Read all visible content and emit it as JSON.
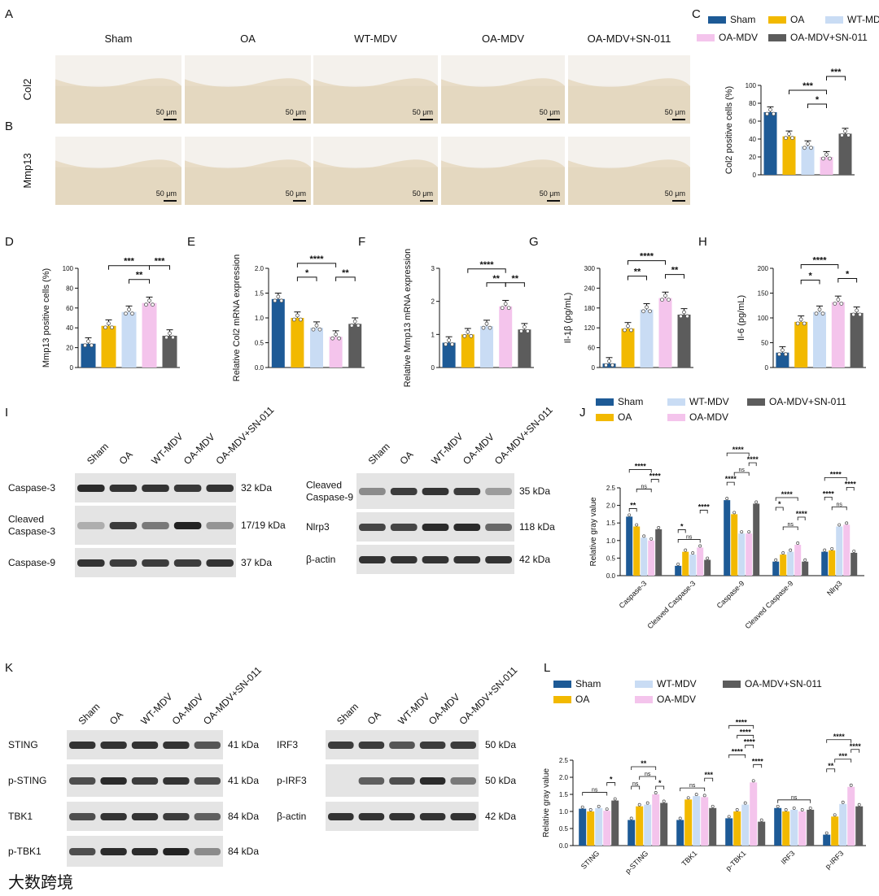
{
  "colors": {
    "Sham": "#1d5a96",
    "OA": "#f2b900",
    "WT-MDV": "#c9dcf4",
    "OA-MDV": "#f4c4ec",
    "OA-MDV+SN-011": "#5c5c5c"
  },
  "groups": [
    "Sham",
    "OA",
    "WT-MDV",
    "OA-MDV",
    "OA-MDV+SN-011"
  ],
  "panels": {
    "A": "A",
    "B": "B",
    "C": "C",
    "D": "D",
    "E": "E",
    "F": "F",
    "G": "G",
    "H": "H",
    "I": "I",
    "J": "J",
    "K": "K",
    "L": "L"
  },
  "histology": {
    "rows": [
      {
        "label": "Col2"
      },
      {
        "label": "Mmp13"
      }
    ],
    "scale_bar": "50 μm"
  },
  "blots": {
    "I_left": {
      "groups": [
        "Sham",
        "OA",
        "WT-MDV",
        "OA-MDV",
        "OA-MDV+SN-011"
      ],
      "rows": [
        {
          "label": "Caspase-3",
          "kda": "32 kDa"
        },
        {
          "label": "Cleaved\nCaspase-3",
          "kda": "17/19 kDa"
        },
        {
          "label": "Caspase-9",
          "kda": "37 kDa"
        }
      ]
    },
    "I_right": {
      "groups": [
        "Sham",
        "OA",
        "WT-MDV",
        "OA-MDV",
        "OA-MDV+SN-011"
      ],
      "rows": [
        {
          "label": "Cleaved\nCaspase-9",
          "kda": "35 kDa"
        },
        {
          "label": "Nlrp3",
          "kda": "118 kDa"
        },
        {
          "label": "β-actin",
          "kda": "42 kDa"
        }
      ]
    },
    "K_left": {
      "groups": [
        "Sham",
        "OA",
        "WT-MDV",
        "OA-MDV",
        "OA-MDV+SN-011"
      ],
      "rows": [
        {
          "label": "STING",
          "kda": "41 kDa"
        },
        {
          "label": "p-STING",
          "kda": "41 kDa"
        },
        {
          "label": "TBK1",
          "kda": "84 kDa"
        },
        {
          "label": "p-TBK1",
          "kda": "84 kDa"
        }
      ]
    },
    "K_right": {
      "groups": [
        "Sham",
        "OA",
        "WT-MDV",
        "OA-MDV",
        "OA-MDV+SN-011"
      ],
      "rows": [
        {
          "label": "IRF3",
          "kda": "50 kDa"
        },
        {
          "label": "p-IRF3",
          "kda": "50 kDa"
        },
        {
          "label": "β-actin",
          "kda": "42 kDa"
        }
      ]
    }
  },
  "watermark": "大数跨境",
  "chart_data": [
    {
      "panel": "C",
      "type": "bar",
      "ylabel": "Col2  positive cells (%)",
      "ylim": [
        0,
        100
      ],
      "yticks": [
        0,
        20,
        40,
        60,
        80,
        100
      ],
      "categories": [
        "Sham",
        "OA",
        "WT-MDV",
        "OA-MDV",
        "OA-MDV+SN-011"
      ],
      "values": [
        70,
        43,
        32,
        20,
        46
      ],
      "sig": [
        {
          "a": 1,
          "b": 3,
          "label": "***",
          "level": 1
        },
        {
          "a": 2,
          "b": 3,
          "label": "*",
          "level": 0
        },
        {
          "a": 3,
          "b": 4,
          "label": "***",
          "level": 2
        }
      ]
    },
    {
      "panel": "D",
      "type": "bar",
      "ylabel": "Mmp13 positive cells (%)",
      "ylim": [
        0,
        100
      ],
      "yticks": [
        0,
        20,
        40,
        60,
        80,
        100
      ],
      "categories": [
        "Sham",
        "OA",
        "WT-MDV",
        "OA-MDV",
        "OA-MDV+SN-011"
      ],
      "values": [
        24,
        42,
        56,
        65,
        32
      ],
      "sig": [
        {
          "a": 1,
          "b": 3,
          "label": "***",
          "level": 2
        },
        {
          "a": 2,
          "b": 3,
          "label": "**",
          "level": 1
        },
        {
          "a": 3,
          "b": 4,
          "label": "***",
          "level": 2
        }
      ]
    },
    {
      "panel": "E",
      "type": "bar",
      "ylabel": "Relative Col2 mRNA expression",
      "ylim": [
        0,
        2.0
      ],
      "yticks": [
        "0.0",
        "0.5",
        "1.0",
        "1.5",
        "2.0"
      ],
      "categories": [
        "Sham",
        "OA",
        "WT-MDV",
        "OA-MDV",
        "OA-MDV+SN-011"
      ],
      "values": [
        1.38,
        1.0,
        0.8,
        0.62,
        0.88
      ],
      "sig": [
        {
          "a": 1,
          "b": 3,
          "label": "****",
          "level": 2
        },
        {
          "a": 1,
          "b": 2,
          "label": "*",
          "level": 1
        },
        {
          "a": 3,
          "b": 4,
          "label": "**",
          "level": 1
        }
      ]
    },
    {
      "panel": "F",
      "type": "bar",
      "ylabel": "Relative Mmp13 mRNA expression",
      "ylim": [
        0,
        3
      ],
      "yticks": [
        0,
        1,
        2,
        3
      ],
      "categories": [
        "Sham",
        "OA",
        "WT-MDV",
        "OA-MDV",
        "OA-MDV+SN-011"
      ],
      "values": [
        0.75,
        1.0,
        1.25,
        1.85,
        1.15
      ],
      "sig": [
        {
          "a": 1,
          "b": 3,
          "label": "****",
          "level": 2
        },
        {
          "a": 2,
          "b": 3,
          "label": "**",
          "level": 1
        },
        {
          "a": 3,
          "b": 4,
          "label": "**",
          "level": 1
        }
      ]
    },
    {
      "panel": "G",
      "type": "bar",
      "ylabel": "Il-1β (pg/mL)",
      "ylim": [
        0,
        300
      ],
      "yticks": [
        0,
        60,
        120,
        180,
        240,
        300
      ],
      "categories": [
        "Sham",
        "OA",
        "WT-MDV",
        "OA-MDV",
        "OA-MDV+SN-011"
      ],
      "values": [
        12,
        118,
        175,
        210,
        160
      ],
      "sig": [
        {
          "a": 1,
          "b": 3,
          "label": "****",
          "level": 2
        },
        {
          "a": 1,
          "b": 2,
          "label": "**",
          "level": 1
        },
        {
          "a": 3,
          "b": 4,
          "label": "**",
          "level": 1
        }
      ]
    },
    {
      "panel": "H",
      "type": "bar",
      "ylabel": "Il-6 (pg/mL)",
      "ylim": [
        0,
        200
      ],
      "yticks": [
        0,
        50,
        100,
        150,
        200
      ],
      "categories": [
        "Sham",
        "OA",
        "WT-MDV",
        "OA-MDV",
        "OA-MDV+SN-011"
      ],
      "values": [
        30,
        92,
        112,
        132,
        110
      ],
      "sig": [
        {
          "a": 1,
          "b": 3,
          "label": "****",
          "level": 2
        },
        {
          "a": 1,
          "b": 2,
          "label": "*",
          "level": 1
        },
        {
          "a": 3,
          "b": 4,
          "label": "*",
          "level": 1
        }
      ]
    },
    {
      "panel": "J",
      "type": "bar",
      "ylabel": "Relative gray value",
      "ylim": [
        0,
        2.5
      ],
      "yticks": [
        "0.0",
        "0.5",
        "1.0",
        "1.5",
        "2.0",
        "2.5"
      ],
      "categories": [
        "Caspase-3",
        "Cleaved  Caspase-3",
        "Caspase-9",
        "Cleaved Caspase-9",
        "Nlrp3"
      ],
      "series": [
        {
          "name": "Sham",
          "values": [
            1.68,
            0.28,
            2.15,
            0.4,
            0.68
          ]
        },
        {
          "name": "OA",
          "values": [
            1.4,
            0.68,
            1.75,
            0.6,
            0.72
          ]
        },
        {
          "name": "WT-MDV",
          "values": [
            1.08,
            0.6,
            1.2,
            0.68,
            1.4
          ]
        },
        {
          "name": "OA-MDV",
          "values": [
            1.0,
            0.8,
            1.2,
            0.88,
            1.45
          ]
        },
        {
          "name": "OA-MDV+SN-011",
          "values": [
            1.32,
            0.45,
            2.05,
            0.4,
            0.65
          ]
        }
      ],
      "sig": [
        {
          "c": 0,
          "a": 0,
          "b": 3,
          "label": "****",
          "level": 4
        },
        {
          "c": 0,
          "a": 0,
          "b": 1,
          "label": "**",
          "level": 0
        },
        {
          "c": 0,
          "a": 1,
          "b": 3,
          "label": "ns",
          "level": 2
        },
        {
          "c": 0,
          "a": 3,
          "b": 4,
          "label": "****",
          "level": 3
        },
        {
          "c": 1,
          "a": 0,
          "b": 3,
          "label": "ns",
          "level": 0
        },
        {
          "c": 1,
          "a": 0,
          "b": 1,
          "label": "*",
          "level": 1
        },
        {
          "c": 1,
          "a": 3,
          "b": 4,
          "label": "****",
          "level": 3
        },
        {
          "c": 2,
          "a": 0,
          "b": 3,
          "label": "****",
          "level": 4
        },
        {
          "c": 2,
          "a": 0,
          "b": 1,
          "label": "****",
          "level": 1
        },
        {
          "c": 2,
          "a": 1,
          "b": 3,
          "label": "ns",
          "level": 2
        },
        {
          "c": 2,
          "a": 3,
          "b": 4,
          "label": "****",
          "level": 3
        },
        {
          "c": 3,
          "a": 0,
          "b": 3,
          "label": "****",
          "level": 4
        },
        {
          "c": 3,
          "a": 0,
          "b": 1,
          "label": "*",
          "level": 3
        },
        {
          "c": 3,
          "a": 1,
          "b": 3,
          "label": "ns",
          "level": 1
        },
        {
          "c": 3,
          "a": 3,
          "b": 4,
          "label": "****",
          "level": 2
        },
        {
          "c": 4,
          "a": 0,
          "b": 3,
          "label": "****",
          "level": 4
        },
        {
          "c": 4,
          "a": 0,
          "b": 1,
          "label": "****",
          "level": 2
        },
        {
          "c": 4,
          "a": 1,
          "b": 3,
          "label": "ns",
          "level": 1
        },
        {
          "c": 4,
          "a": 3,
          "b": 4,
          "label": "****",
          "level": 3
        }
      ]
    },
    {
      "panel": "L",
      "type": "bar",
      "ylabel": "Relative gray value",
      "ylim": [
        0,
        2.5
      ],
      "yticks": [
        "0.0",
        "0.5",
        "1.0",
        "1.5",
        "2.0",
        "2.5"
      ],
      "categories": [
        "STING",
        "p-STING",
        "TBK1",
        "p-TBK1",
        "IRF3",
        "p-IRF3"
      ],
      "series": [
        {
          "name": "Sham",
          "values": [
            1.08,
            0.75,
            0.75,
            0.8,
            1.1,
            0.32
          ]
        },
        {
          "name": "OA",
          "values": [
            1.0,
            1.15,
            1.35,
            1.0,
            1.0,
            0.85
          ]
        },
        {
          "name": "WT-MDV",
          "values": [
            1.1,
            1.2,
            1.45,
            1.2,
            1.05,
            1.22
          ]
        },
        {
          "name": "OA-MDV",
          "values": [
            1.02,
            1.5,
            1.42,
            1.85,
            1.0,
            1.72
          ]
        },
        {
          "name": "OA-MDV+SN-011",
          "values": [
            1.32,
            1.25,
            1.1,
            0.7,
            1.05,
            1.15
          ]
        }
      ],
      "sig": [
        {
          "c": 0,
          "a": 0,
          "b": 3,
          "label": "ns",
          "level": 0
        },
        {
          "c": 0,
          "a": 3,
          "b": 4,
          "label": "*",
          "level": 1
        },
        {
          "c": 1,
          "a": 0,
          "b": 3,
          "label": "**",
          "level": 2
        },
        {
          "c": 1,
          "a": 0,
          "b": 1,
          "label": "ns",
          "level": 0
        },
        {
          "c": 1,
          "a": 1,
          "b": 3,
          "label": "ns",
          "level": 1
        },
        {
          "c": 1,
          "a": 3,
          "b": 4,
          "label": "*",
          "level": 0
        },
        {
          "c": 2,
          "a": 0,
          "b": 3,
          "label": "ns",
          "level": 0
        },
        {
          "c": 2,
          "a": 3,
          "b": 4,
          "label": "***",
          "level": 1
        },
        {
          "c": 3,
          "a": 0,
          "b": 3,
          "label": "****",
          "level": 5
        },
        {
          "c": 3,
          "a": 1,
          "b": 3,
          "label": "****",
          "level": 4
        },
        {
          "c": 3,
          "a": 2,
          "b": 3,
          "label": "****",
          "level": 3
        },
        {
          "c": 3,
          "a": 0,
          "b": 2,
          "label": "****",
          "level": 2
        },
        {
          "c": 3,
          "a": 3,
          "b": 4,
          "label": "****",
          "level": 1
        },
        {
          "c": 4,
          "a": 0,
          "b": 4,
          "label": "ns",
          "level": 0
        },
        {
          "c": 5,
          "a": 0,
          "b": 3,
          "label": "****",
          "level": 4
        },
        {
          "c": 5,
          "a": 0,
          "b": 1,
          "label": "**",
          "level": 1
        },
        {
          "c": 5,
          "a": 1,
          "b": 3,
          "label": "***",
          "level": 2
        },
        {
          "c": 5,
          "a": 3,
          "b": 4,
          "label": "****",
          "level": 3
        }
      ]
    }
  ]
}
